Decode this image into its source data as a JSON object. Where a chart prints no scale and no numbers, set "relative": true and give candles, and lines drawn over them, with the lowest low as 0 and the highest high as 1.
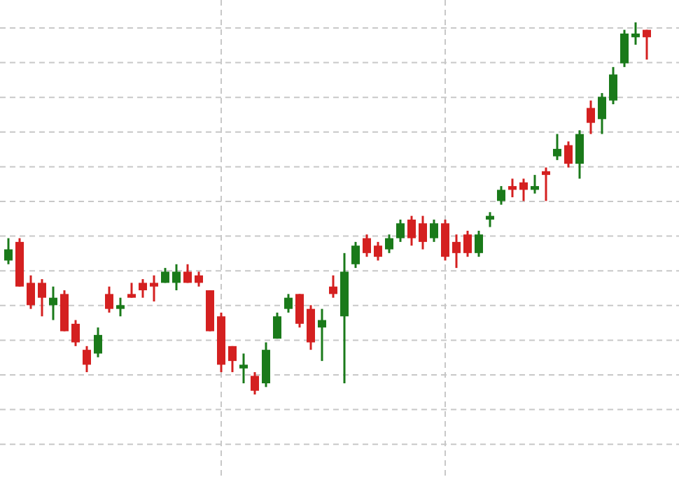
{
  "chart_data": {
    "type": "candlestick",
    "relative": true,
    "grid": true,
    "categories": [
      null,
      null,
      null,
      null,
      null,
      null,
      null,
      null,
      null,
      null,
      null,
      null,
      null,
      null,
      null,
      null,
      null,
      null,
      null,
      null,
      null,
      null,
      null,
      null,
      null,
      null,
      null,
      null,
      null,
      null,
      null,
      null,
      null,
      null,
      null,
      null,
      null,
      null,
      null,
      null,
      null,
      null,
      null,
      null,
      null,
      null,
      null,
      null,
      null,
      null,
      null,
      null,
      null,
      null,
      null,
      null,
      null,
      null
    ],
    "ohlc": [
      [
        0.36,
        0.42,
        0.35,
        0.39
      ],
      [
        0.41,
        0.42,
        0.29,
        0.29
      ],
      [
        0.3,
        0.32,
        0.23,
        0.24
      ],
      [
        0.3,
        0.31,
        0.21,
        0.26
      ],
      [
        0.24,
        0.29,
        0.2,
        0.26
      ],
      [
        0.27,
        0.28,
        0.17,
        0.17
      ],
      [
        0.19,
        0.2,
        0.13,
        0.14
      ],
      [
        0.12,
        0.13,
        0.06,
        0.08
      ],
      [
        0.11,
        0.18,
        0.1,
        0.16
      ],
      [
        0.27,
        0.29,
        0.22,
        0.23
      ],
      [
        0.23,
        0.26,
        0.21,
        0.24
      ],
      [
        0.27,
        0.3,
        0.26,
        0.26
      ],
      [
        0.3,
        0.31,
        0.26,
        0.28
      ],
      [
        0.3,
        0.32,
        0.25,
        0.29
      ],
      [
        0.3,
        0.34,
        0.3,
        0.33
      ],
      [
        0.3,
        0.35,
        0.28,
        0.33
      ],
      [
        0.33,
        0.35,
        0.3,
        0.3
      ],
      [
        0.32,
        0.33,
        0.29,
        0.3
      ],
      [
        0.28,
        0.28,
        0.17,
        0.17
      ],
      [
        0.21,
        0.22,
        0.06,
        0.08
      ],
      [
        0.13,
        0.13,
        0.06,
        0.09
      ],
      [
        0.07,
        0.11,
        0.03,
        0.08
      ],
      [
        0.05,
        0.06,
        0,
        0.01
      ],
      [
        0.03,
        0.14,
        0.02,
        0.12
      ],
      [
        0.15,
        0.22,
        0.15,
        0.21
      ],
      [
        0.23,
        0.27,
        0.22,
        0.26
      ],
      [
        0.27,
        0.27,
        0.18,
        0.19
      ],
      [
        0.23,
        0.24,
        0.12,
        0.14
      ],
      [
        0.18,
        0.23,
        0.09,
        0.2
      ],
      [
        0.29,
        0.32,
        0.26,
        0.27
      ],
      [
        0.21,
        0.38,
        0.03,
        0.33
      ],
      [
        0.35,
        0.41,
        0.34,
        0.4
      ],
      [
        0.42,
        0.43,
        0.37,
        0.38
      ],
      [
        0.4,
        0.41,
        0.36,
        0.37
      ],
      [
        0.39,
        0.43,
        0.38,
        0.42
      ],
      [
        0.42,
        0.47,
        0.41,
        0.46
      ],
      [
        0.47,
        0.48,
        0.4,
        0.42
      ],
      [
        0.46,
        0.48,
        0.39,
        0.41
      ],
      [
        0.42,
        0.47,
        0.41,
        0.46
      ],
      [
        0.46,
        0.47,
        0.36,
        0.37
      ],
      [
        0.41,
        0.43,
        0.34,
        0.38
      ],
      [
        0.43,
        0.44,
        0.37,
        0.38
      ],
      [
        0.38,
        0.44,
        0.37,
        0.43
      ],
      [
        0.47,
        0.49,
        0.45,
        0.48
      ],
      [
        0.52,
        0.56,
        0.51,
        0.55
      ],
      [
        0.56,
        0.58,
        0.53,
        0.55
      ],
      [
        0.57,
        0.58,
        0.52,
        0.55
      ],
      [
        0.55,
        0.59,
        0.54,
        0.56
      ],
      [
        0.6,
        0.61,
        0.52,
        0.59
      ],
      [
        0.64,
        0.7,
        0.63,
        0.66
      ],
      [
        0.67,
        0.68,
        0.61,
        0.62
      ],
      [
        0.62,
        0.71,
        0.58,
        0.7
      ],
      [
        0.77,
        0.79,
        0.7,
        0.73
      ],
      [
        0.74,
        0.81,
        0.7,
        0.8
      ],
      [
        0.79,
        0.88,
        0.78,
        0.86
      ],
      [
        0.89,
        0.98,
        0.88,
        0.97
      ],
      [
        0.96,
        1,
        0.94,
        0.97
      ],
      [
        0.98,
        0.98,
        0.9,
        0.96
      ]
    ],
    "colors": [
      "#1a7a1a",
      "#d42020",
      "#d42020",
      "#d42020",
      "#1a7a1a",
      "#d42020",
      "#d42020",
      "#d42020",
      "#1a7a1a",
      "#d42020",
      "#1a7a1a",
      "#d42020",
      "#d42020",
      "#d42020",
      "#1a7a1a",
      "#1a7a1a",
      "#d42020",
      "#d42020",
      "#d42020",
      "#d42020",
      "#d42020",
      "#1a7a1a",
      "#d42020",
      "#1a7a1a",
      "#1a7a1a",
      "#1a7a1a",
      "#d42020",
      "#d42020",
      "#1a7a1a",
      "#d42020",
      "#1a7a1a",
      "#1a7a1a",
      "#d42020",
      "#d42020",
      "#1a7a1a",
      "#1a7a1a",
      "#d42020",
      "#d42020",
      "#1a7a1a",
      "#d42020",
      "#d42020",
      "#d42020",
      "#1a7a1a",
      "#1a7a1a",
      "#1a7a1a",
      "#d42020",
      "#d42020",
      "#1a7a1a",
      "#d42020",
      "#1a7a1a",
      "#d42020",
      "#1a7a1a",
      "#d42020",
      "#1a7a1a",
      "#1a7a1a",
      "#1a7a1a",
      "#1a7a1a",
      "#d42020"
    ]
  }
}
